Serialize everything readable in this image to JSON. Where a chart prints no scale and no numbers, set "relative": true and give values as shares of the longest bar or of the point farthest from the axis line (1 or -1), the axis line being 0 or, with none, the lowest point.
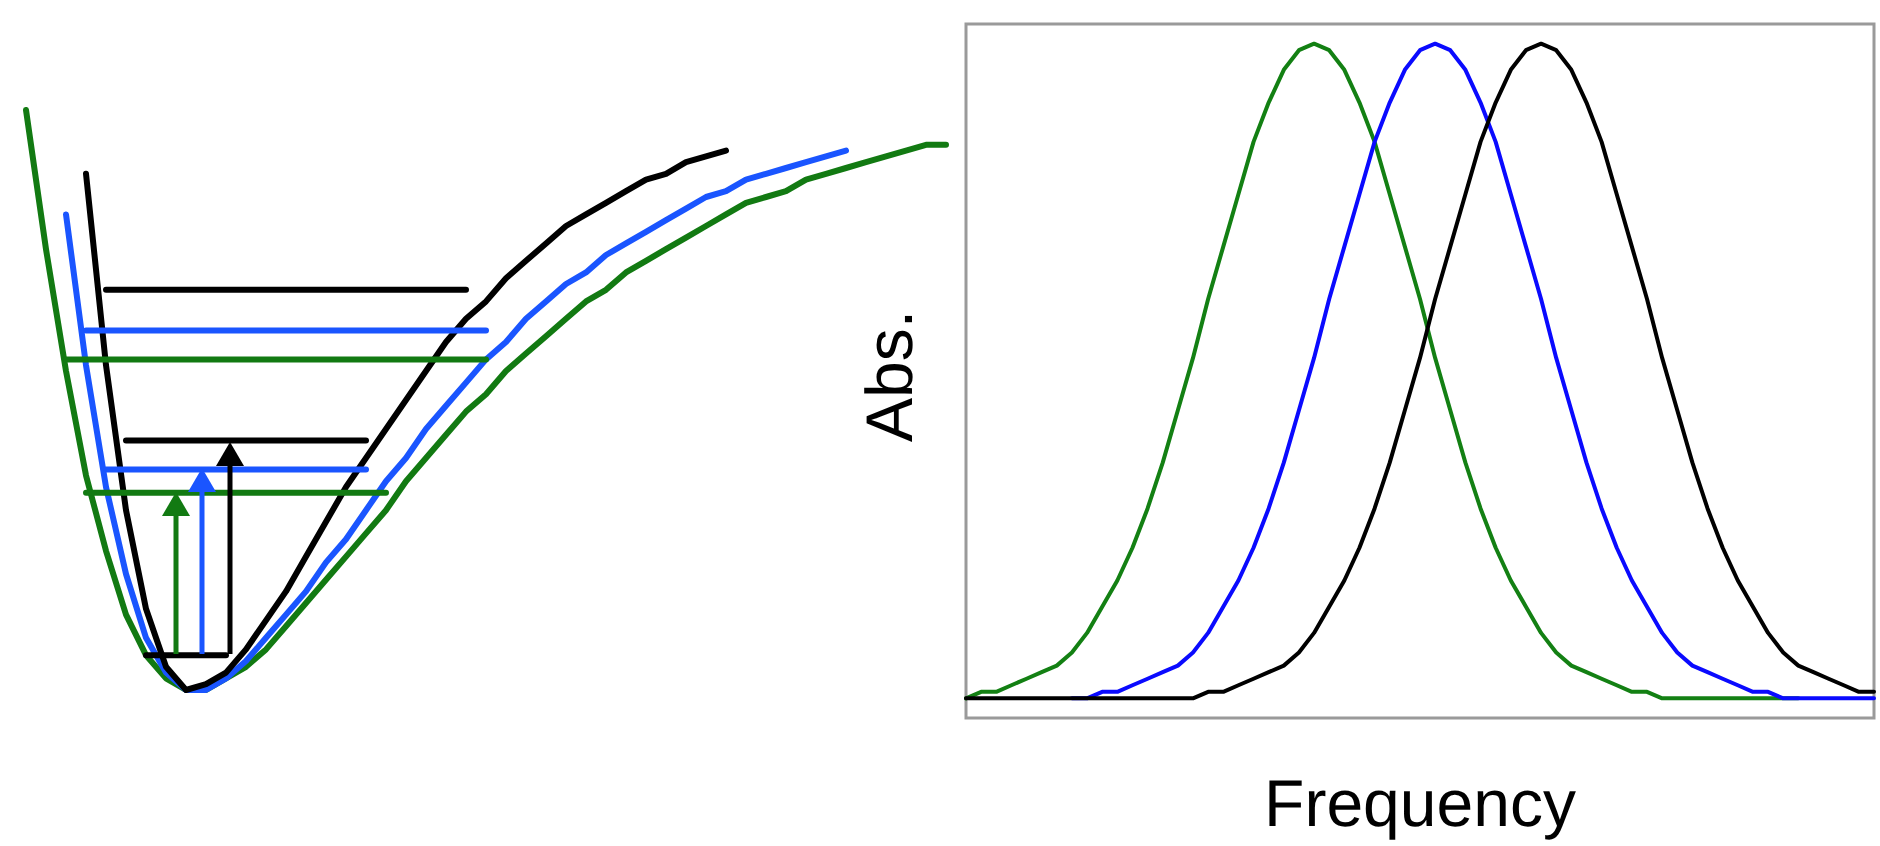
{
  "chart_data": [
    {
      "type": "line",
      "relative": true,
      "marker": "none",
      "line_style": "solid",
      "categories": [
        null,
        null,
        null,
        null,
        null,
        null,
        null,
        null,
        null,
        null,
        null,
        null,
        null,
        null,
        null,
        null,
        null,
        null,
        null,
        null,
        null,
        null,
        null,
        null,
        null,
        null,
        null,
        null,
        null,
        null,
        null,
        null,
        null,
        null,
        null,
        null,
        null,
        null,
        null,
        null,
        null,
        null,
        null,
        null,
        null,
        null,
        null
      ],
      "series": [
        {
          "color": "#127a12",
          "values": [
            1,
            0.76,
            0.55,
            0.37,
            0.24,
            0.13,
            0.06,
            0.02,
            0,
            0,
            0.02,
            0.04,
            0.07,
            0.11,
            0.15,
            0.19,
            0.23,
            0.27,
            0.31,
            0.36,
            0.4,
            0.44,
            0.48,
            0.51,
            0.55,
            0.58,
            0.61,
            0.64,
            0.67,
            0.69,
            0.72,
            0.74,
            0.76,
            0.78,
            0.8,
            0.82,
            0.84,
            0.85,
            0.86,
            0.88,
            0.89,
            0.9,
            0.91,
            0.92,
            0.93,
            0.94,
            0.94
          ]
        },
        {
          "color": "#1a55ff",
          "values": [
            null,
            null,
            0.82,
            0.56,
            0.35,
            0.2,
            0.09,
            0.03,
            0,
            0,
            0.02,
            0.05,
            0.09,
            0.13,
            0.17,
            0.22,
            0.26,
            0.31,
            0.36,
            0.4,
            0.45,
            0.49,
            0.53,
            0.57,
            0.6,
            0.64,
            0.67,
            0.7,
            0.72,
            0.75,
            0.77,
            0.79,
            0.81,
            0.83,
            0.85,
            0.86,
            0.88,
            0.89,
            0.9,
            0.91,
            0.92,
            0.93,
            null,
            null,
            null,
            null,
            null
          ]
        },
        {
          "color": "#000000",
          "values": [
            null,
            null,
            null,
            0.89,
            0.56,
            0.31,
            0.14,
            0.04,
            0,
            0.01,
            0.03,
            0.07,
            0.12,
            0.17,
            0.23,
            0.29,
            0.35,
            0.4,
            0.45,
            0.5,
            0.55,
            0.6,
            0.64,
            0.67,
            0.71,
            0.74,
            0.77,
            0.8,
            0.82,
            0.84,
            0.86,
            0.88,
            0.89,
            0.91,
            0.92,
            0.93,
            null,
            null,
            null,
            null,
            null,
            null,
            null,
            null,
            null,
            null,
            null
          ]
        },
        {
          "color": "#000000",
          "values": [
            null,
            null,
            null,
            null,
            0.69,
            0.69,
            0.69,
            0.69,
            0.69,
            0.69,
            0.69,
            0.69,
            0.69,
            0.69,
            0.69,
            0.69,
            0.69,
            0.69,
            0.69,
            0.69,
            0.69,
            0.69,
            0.69,
            null,
            null,
            null,
            null,
            null,
            null,
            null,
            null,
            null,
            null,
            null,
            null,
            null,
            null,
            null,
            null,
            null,
            null,
            null,
            null,
            null,
            null,
            null,
            null
          ]
        },
        {
          "color": "#1a55ff",
          "values": [
            null,
            null,
            null,
            0.62,
            0.62,
            0.62,
            0.62,
            0.62,
            0.62,
            0.62,
            0.62,
            0.62,
            0.62,
            0.62,
            0.62,
            0.62,
            0.62,
            0.62,
            0.62,
            0.62,
            0.62,
            0.62,
            0.62,
            0.62,
            null,
            null,
            null,
            null,
            null,
            null,
            null,
            null,
            null,
            null,
            null,
            null,
            null,
            null,
            null,
            null,
            null,
            null,
            null,
            null,
            null,
            null,
            null
          ]
        },
        {
          "color": "#127a12",
          "values": [
            null,
            null,
            0.57,
            0.57,
            0.57,
            0.57,
            0.57,
            0.57,
            0.57,
            0.57,
            0.57,
            0.57,
            0.57,
            0.57,
            0.57,
            0.57,
            0.57,
            0.57,
            0.57,
            0.57,
            0.57,
            0.57,
            0.57,
            0.57,
            null,
            null,
            null,
            null,
            null,
            null,
            null,
            null,
            null,
            null,
            null,
            null,
            null,
            null,
            null,
            null,
            null,
            null,
            null,
            null,
            null,
            null,
            null
          ]
        },
        {
          "color": "#000000",
          "values": [
            null,
            null,
            null,
            null,
            null,
            0.43,
            0.43,
            0.43,
            0.43,
            0.43,
            0.43,
            0.43,
            0.43,
            0.43,
            0.43,
            0.43,
            0.43,
            0.43,
            null,
            null,
            null,
            null,
            null,
            null,
            null,
            null,
            null,
            null,
            null,
            null,
            null,
            null,
            null,
            null,
            null,
            null,
            null,
            null,
            null,
            null,
            null,
            null,
            null,
            null,
            null,
            null,
            null
          ]
        },
        {
          "color": "#1a55ff",
          "values": [
            null,
            null,
            null,
            null,
            0.38,
            0.38,
            0.38,
            0.38,
            0.38,
            0.38,
            0.38,
            0.38,
            0.38,
            0.38,
            0.38,
            0.38,
            0.38,
            0.38,
            null,
            null,
            null,
            null,
            null,
            null,
            null,
            null,
            null,
            null,
            null,
            null,
            null,
            null,
            null,
            null,
            null,
            null,
            null,
            null,
            null,
            null,
            null,
            null,
            null,
            null,
            null,
            null,
            null
          ]
        },
        {
          "color": "#127a12",
          "values": [
            null,
            null,
            null,
            0.34,
            0.34,
            0.34,
            0.34,
            0.34,
            0.34,
            0.34,
            0.34,
            0.34,
            0.34,
            0.34,
            0.34,
            0.34,
            0.34,
            0.34,
            0.34,
            null,
            null,
            null,
            null,
            null,
            null,
            null,
            null,
            null,
            null,
            null,
            null,
            null,
            null,
            null,
            null,
            null,
            null,
            null,
            null,
            null,
            null,
            null,
            null,
            null,
            null,
            null,
            null
          ]
        },
        {
          "color": "#000000",
          "values": [
            null,
            null,
            null,
            null,
            null,
            null,
            0.06,
            0.06,
            0.06,
            0.06,
            0.06,
            null,
            null,
            null,
            null,
            null,
            null,
            null,
            null,
            null,
            null,
            null,
            null,
            null,
            null,
            null,
            null,
            null,
            null,
            null,
            null,
            null,
            null,
            null,
            null,
            null,
            null,
            null,
            null,
            null,
            null,
            null,
            null,
            null,
            null,
            null,
            null
          ]
        }
      ]
    },
    {
      "type": "line",
      "relative": true,
      "xlabel": "Frequency",
      "ylabel": "Abs.",
      "marker": "none",
      "line_style": "solid",
      "categories": [
        null,
        null,
        null,
        null,
        null,
        null,
        null,
        null,
        null,
        null,
        null,
        null,
        null,
        null,
        null,
        null,
        null,
        null,
        null,
        null,
        null,
        null,
        null,
        null,
        null,
        null,
        null,
        null,
        null,
        null,
        null,
        null,
        null,
        null,
        null,
        null,
        null,
        null,
        null,
        null,
        null,
        null,
        null,
        null,
        null,
        null,
        null,
        null,
        null,
        null,
        null,
        null,
        null,
        null,
        null,
        null,
        null,
        null,
        null,
        null,
        null
      ],
      "series": [
        {
          "color": "#138013",
          "values": [
            0,
            0.01,
            0.01,
            0.02,
            0.03,
            0.04,
            0.05,
            0.07,
            0.1,
            0.14,
            0.18,
            0.23,
            0.29,
            0.36,
            0.44,
            0.52,
            0.61,
            0.69,
            0.77,
            0.85,
            0.91,
            0.96,
            0.99,
            1,
            0.99,
            0.96,
            0.91,
            0.85,
            0.77,
            0.69,
            0.61,
            0.52,
            0.44,
            0.36,
            0.29,
            0.23,
            0.18,
            0.14,
            0.1,
            0.07,
            0.05,
            0.04,
            0.03,
            0.02,
            0.01,
            0.01,
            0,
            0,
            0,
            0,
            0,
            0,
            0,
            0,
            0,
            0,
            null,
            null,
            null,
            null,
            null
          ]
        },
        {
          "color": "#0a0aff",
          "values": [
            null,
            null,
            null,
            null,
            null,
            null,
            null,
            0,
            0,
            0.01,
            0.01,
            0.02,
            0.03,
            0.04,
            0.05,
            0.07,
            0.1,
            0.14,
            0.18,
            0.23,
            0.29,
            0.36,
            0.44,
            0.52,
            0.61,
            0.69,
            0.77,
            0.85,
            0.91,
            0.96,
            0.99,
            1,
            0.99,
            0.96,
            0.91,
            0.85,
            0.77,
            0.69,
            0.61,
            0.52,
            0.44,
            0.36,
            0.29,
            0.23,
            0.18,
            0.14,
            0.1,
            0.07,
            0.05,
            0.04,
            0.03,
            0.02,
            0.01,
            0.01,
            0,
            0,
            0,
            0,
            0,
            0,
            0
          ]
        },
        {
          "color": "#000000",
          "values": [
            0,
            0,
            0,
            0,
            0,
            0,
            0,
            0,
            0,
            0,
            0,
            0,
            0,
            0,
            0,
            0,
            0.01,
            0.01,
            0.02,
            0.03,
            0.04,
            0.05,
            0.07,
            0.1,
            0.14,
            0.18,
            0.23,
            0.29,
            0.36,
            0.44,
            0.52,
            0.61,
            0.69,
            0.77,
            0.85,
            0.91,
            0.96,
            0.99,
            1,
            0.99,
            0.96,
            0.91,
            0.85,
            0.77,
            0.69,
            0.61,
            0.52,
            0.44,
            0.36,
            0.29,
            0.23,
            0.18,
            0.14,
            0.1,
            0.07,
            0.05,
            0.04,
            0.03,
            0.02,
            0.01,
            0.01
          ]
        }
      ]
    }
  ]
}
